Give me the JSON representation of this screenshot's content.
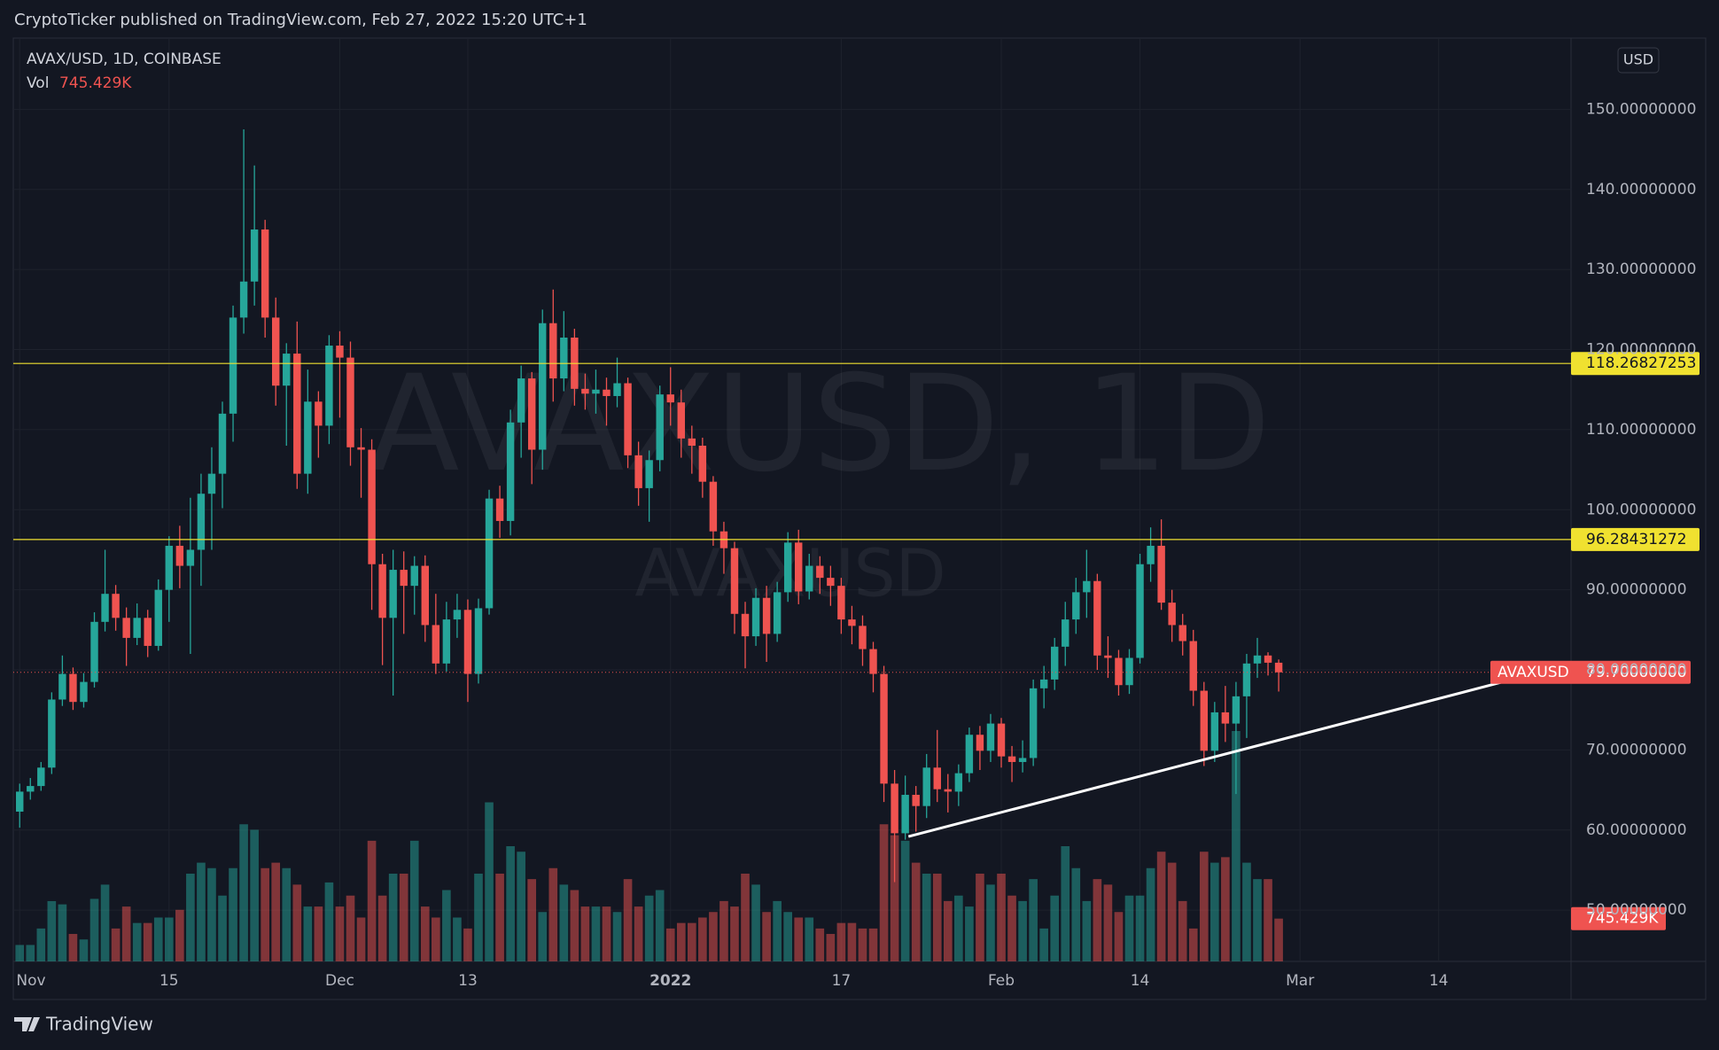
{
  "header": {
    "published": "CryptoTicker published on TradingView.com, Feb 27, 2022 15:20 UTC+1"
  },
  "footer": {
    "brand": "TradingView"
  },
  "chart_data": {
    "type": "candlestick",
    "title": "AVAX/USD, 1D, COINBASE",
    "watermark": "AVAXUSD, 1D",
    "symbol": "AVAXUSD",
    "currency": "USD",
    "volume_title": "Vol",
    "up_color": "#26a69a",
    "down_color": "#ef5350",
    "grid": true,
    "open": [
      62.3,
      64.8,
      65.5,
      67.8,
      76.3,
      79.5,
      76.0,
      78.5,
      86.0,
      89.5,
      86.5,
      84.0,
      86.5,
      83.0,
      90.0,
      95.5,
      93.0,
      95.0,
      102.0,
      104.5,
      112.0,
      124.0,
      128.5,
      135.0,
      124.0,
      115.5,
      119.5,
      104.5,
      113.5,
      110.5,
      120.5,
      119.0,
      107.8,
      107.5,
      93.2,
      86.5,
      92.5,
      90.5,
      93.0,
      85.6,
      80.8,
      86.3,
      87.5,
      79.5,
      87.7,
      101.4,
      98.6,
      110.9,
      116.4,
      107.5,
      123.3,
      116.4,
      121.5,
      115.1,
      114.5,
      115.0,
      114.2,
      115.8,
      106.8,
      102.7,
      106.2,
      114.4,
      113.4,
      108.9,
      108.0,
      103.5,
      97.3,
      95.2,
      87.0,
      84.2,
      89.0,
      84.5,
      89.7,
      95.9,
      89.8,
      93.0,
      91.5,
      90.5,
      86.3,
      85.5,
      82.6,
      79.5,
      65.8,
      59.6,
      64.4,
      63.0,
      67.8,
      65.1,
      64.8,
      67.1,
      71.9,
      69.9,
      73.3,
      69.2,
      68.5,
      69.0,
      77.7,
      78.8,
      82.9,
      86.3,
      89.7,
      91.1,
      81.8,
      81.5,
      78.1,
      81.5,
      93.2,
      95.5,
      88.4,
      85.6,
      83.6,
      77.4,
      69.9,
      74.7,
      73.3,
      76.7,
      80.8,
      81.8,
      80.9
    ],
    "high": [
      65.8,
      66.5,
      68.5,
      77.2,
      81.8,
      80.3,
      79.6,
      87.2,
      95.0,
      90.6,
      87.8,
      88.3,
      87.5,
      91.3,
      96.7,
      98.0,
      101.5,
      104.5,
      107.8,
      113.5,
      125.5,
      147.5,
      143.0,
      136.2,
      126.5,
      120.8,
      123.5,
      117.5,
      114.8,
      121.8,
      122.3,
      121.0,
      110.2,
      108.8,
      94.5,
      95.0,
      94.8,
      94.2,
      94.3,
      89.5,
      88.5,
      89.5,
      88.8,
      88.9,
      102.5,
      103.0,
      112.5,
      118.0,
      117.2,
      125.0,
      127.5,
      124.8,
      122.6,
      117.0,
      117.5,
      116.5,
      119.0,
      116.5,
      108.5,
      107.4,
      115.5,
      117.8,
      115.0,
      110.5,
      109.0,
      104.2,
      98.5,
      96.0,
      88.5,
      90.2,
      90.5,
      91.0,
      97.2,
      97.5,
      94.5,
      94.2,
      93.0,
      91.5,
      88.0,
      86.8,
      83.5,
      80.5,
      67.5,
      66.8,
      65.5,
      69.5,
      72.5,
      67.0,
      68.2,
      72.8,
      73.0,
      74.5,
      74.0,
      70.5,
      71.2,
      78.8,
      80.5,
      84.0,
      88.5,
      91.5,
      95.0,
      92.0,
      84.2,
      82.5,
      82.6,
      94.5,
      97.8,
      98.8,
      90.0,
      87.0,
      85.0,
      78.5,
      76.0,
      78.0,
      78.5,
      82.0,
      84.0,
      82.2,
      81.3
    ],
    "low": [
      60.3,
      63.8,
      64.9,
      67.0,
      75.5,
      75.0,
      75.3,
      77.8,
      84.8,
      84.9,
      80.5,
      83.1,
      81.6,
      82.4,
      86.0,
      90.2,
      82.0,
      90.5,
      95.0,
      100.2,
      108.5,
      122.0,
      125.5,
      121.5,
      113.0,
      108.0,
      102.6,
      102.0,
      106.5,
      108.2,
      111.5,
      105.5,
      101.5,
      87.5,
      80.6,
      76.8,
      84.5,
      86.9,
      83.5,
      79.5,
      79.8,
      84.0,
      76.0,
      78.3,
      86.9,
      96.5,
      96.8,
      106.5,
      103.2,
      105.0,
      113.5,
      114.8,
      113.0,
      112.5,
      112.0,
      110.5,
      112.8,
      105.2,
      100.5,
      98.5,
      104.8,
      110.5,
      106.5,
      104.5,
      101.5,
      95.5,
      92.0,
      84.5,
      80.2,
      83.0,
      81.0,
      83.5,
      88.5,
      88.2,
      88.8,
      89.5,
      88.0,
      84.5,
      83.2,
      80.5,
      77.2,
      63.5,
      53.5,
      58.8,
      59.8,
      61.5,
      63.5,
      62.2,
      63.0,
      66.0,
      67.5,
      68.5,
      67.8,
      66.0,
      67.2,
      68.0,
      75.2,
      77.5,
      80.5,
      84.5,
      86.5,
      80.0,
      79.0,
      76.8,
      77.0,
      80.8,
      91.0,
      87.5,
      83.5,
      81.8,
      75.5,
      68.0,
      68.5,
      71.0,
      64.5,
      71.5,
      79.0,
      79.3,
      77.3
    ],
    "close": [
      64.8,
      65.5,
      67.8,
      76.3,
      79.5,
      76.0,
      78.5,
      86.0,
      89.5,
      86.5,
      84.0,
      86.5,
      83.0,
      90.0,
      95.5,
      93.0,
      95.0,
      102.0,
      104.5,
      112.0,
      124.0,
      128.5,
      135.0,
      124.0,
      115.5,
      119.5,
      104.5,
      113.5,
      110.5,
      120.5,
      119.0,
      107.8,
      107.5,
      93.2,
      86.5,
      92.5,
      90.5,
      93.0,
      85.6,
      80.8,
      86.3,
      87.5,
      79.5,
      87.7,
      101.4,
      98.6,
      110.9,
      116.4,
      107.5,
      123.3,
      116.4,
      121.5,
      115.1,
      114.5,
      115.0,
      114.2,
      115.8,
      106.8,
      102.7,
      106.2,
      114.4,
      113.4,
      108.9,
      108.0,
      103.5,
      97.3,
      95.2,
      87.0,
      84.2,
      89.0,
      84.5,
      89.7,
      95.9,
      89.8,
      93.0,
      91.5,
      90.5,
      86.3,
      85.5,
      82.6,
      79.5,
      65.8,
      59.6,
      64.4,
      63.0,
      67.8,
      65.1,
      64.8,
      67.1,
      71.9,
      69.9,
      73.3,
      69.2,
      68.5,
      69.0,
      77.7,
      78.8,
      82.9,
      86.3,
      89.7,
      91.1,
      81.8,
      81.5,
      78.1,
      81.5,
      93.2,
      95.5,
      88.4,
      85.6,
      83.6,
      77.4,
      69.9,
      74.7,
      73.3,
      76.7,
      80.8,
      81.8,
      80.9,
      79.7
    ],
    "volume": [
      286000,
      286000,
      573000,
      1050000,
      993000,
      478000,
      382000,
      1089000,
      1337000,
      573000,
      955000,
      669000,
      669000,
      764000,
      764000,
      898000,
      1528000,
      1719000,
      1624000,
      1146000,
      1624000,
      2388000,
      2292000,
      1624000,
      1719000,
      1624000,
      1337000,
      955000,
      955000,
      1375000,
      955000,
      1146000,
      764000,
      2101000,
      1146000,
      1528000,
      1528000,
      2101000,
      955000,
      764000,
      1242000,
      764000,
      573000,
      1528000,
      2770000,
      1528000,
      2006000,
      1910000,
      1433000,
      860000,
      1624000,
      1337000,
      1242000,
      955000,
      955000,
      955000,
      860000,
      1433000,
      955000,
      1146000,
      1242000,
      573000,
      669000,
      669000,
      764000,
      860000,
      1051000,
      955000,
      1528000,
      1337000,
      860000,
      1051000,
      860000,
      764000,
      764000,
      573000,
      478000,
      669000,
      669000,
      573000,
      573000,
      2388000,
      2197000,
      2101000,
      1719000,
      1528000,
      1528000,
      1051000,
      1146000,
      955000,
      1528000,
      1337000,
      1528000,
      1146000,
      1051000,
      1433000,
      573000,
      1146000,
      2006000,
      1624000,
      1051000,
      1433000,
      1337000,
      860000,
      1146000,
      1146000,
      1624000,
      1910000,
      1719000,
      1051000,
      573000,
      1910000,
      1719000,
      1815000,
      4012000,
      1719000,
      1433000,
      1433000,
      745429
    ],
    "last_volume": {
      "value": 745429,
      "label": "745.429K"
    },
    "last_price": {
      "value": 79.7,
      "label": "79.70000000",
      "color": "#ef5350"
    },
    "price_lines": [
      {
        "value": 118.26827253,
        "label": "118.26827253",
        "color": "#f0e130"
      },
      {
        "value": 96.28431272,
        "label": "96.28431272",
        "color": "#f0e130"
      }
    ],
    "trendline": {
      "x": [
        83.3,
        139
      ],
      "y": [
        59.2,
        78.5
      ],
      "color": "#ffffff"
    },
    "xlim": [
      -0.6,
      145.4
    ],
    "xticks": [
      {
        "value": 0,
        "label": "Nov"
      },
      {
        "value": 14,
        "label": "15"
      },
      {
        "value": 30,
        "label": "Dec"
      },
      {
        "value": 42,
        "label": "13"
      },
      {
        "value": 61,
        "label": "2022"
      },
      {
        "value": 77,
        "label": "17"
      },
      {
        "value": 92,
        "label": "Feb"
      },
      {
        "value": 105,
        "label": "14"
      },
      {
        "value": 120,
        "label": "Mar"
      },
      {
        "value": 133,
        "label": "14"
      }
    ],
    "ylim": [
      43.6,
      158.9
    ],
    "yticks": [
      {
        "value": 50,
        "label": "50.00000000"
      },
      {
        "value": 60,
        "label": "60.00000000"
      },
      {
        "value": 70,
        "label": "70.00000000"
      },
      {
        "value": 80,
        "label": "80.00000000"
      },
      {
        "value": 90,
        "label": "90.00000000"
      },
      {
        "value": 100,
        "label": "100.00000000"
      },
      {
        "value": 110,
        "label": "110.00000000"
      },
      {
        "value": 120,
        "label": "120.00000000"
      },
      {
        "value": 130,
        "label": "130.00000000"
      },
      {
        "value": 140,
        "label": "140.00000000"
      },
      {
        "value": 150,
        "label": "150.00000000"
      }
    ]
  }
}
